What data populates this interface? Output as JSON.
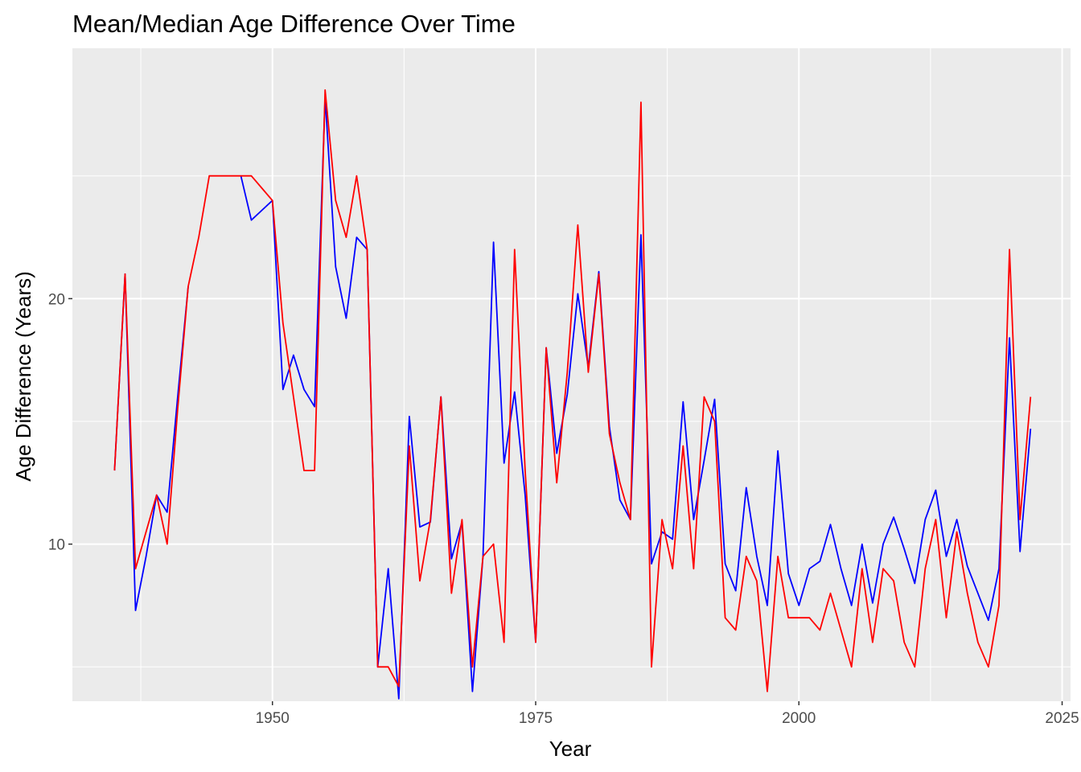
{
  "chart_data": {
    "type": "line",
    "title": "Mean/Median Age Difference Over Time",
    "xlabel": "Year",
    "ylabel": "Age Difference (Years)",
    "xlim": [
      1931,
      2025.8
    ],
    "ylim": [
      3.6,
      30.2
    ],
    "xticks": [
      1950,
      1975,
      2000,
      2025
    ],
    "yticks": [
      10,
      20
    ],
    "grid": true,
    "legend": "none",
    "colors": {
      "panel": "#EBEBEB",
      "grid": "#FFFFFF",
      "mean": "#0000FF",
      "median": "#FF0000"
    },
    "series": [
      {
        "color": "#0000FF",
        "segments": [
          {
            "x": [
              1935,
              1936,
              1937,
              1938,
              1939,
              1940,
              1941,
              1942
            ],
            "y": [
              13,
              21,
              7.3,
              9.5,
              12,
              11.3,
              16,
              20.5
            ]
          },
          {
            "x": [
              1947,
              1948,
              1949,
              1950,
              1951,
              1952,
              1953,
              1954,
              1955,
              1956,
              1957,
              1958,
              1959,
              1960,
              1961,
              1962,
              1963,
              1964,
              1965,
              1966,
              1967,
              1968,
              1969,
              1970,
              1971,
              1972,
              1973,
              1974,
              1975,
              1976,
              1977,
              1978,
              1979,
              1980,
              1981,
              1982,
              1983,
              1984,
              1985,
              1986,
              1987,
              1988,
              1989,
              1990,
              1991,
              1992,
              1993,
              1994,
              1995,
              1996,
              1997,
              1998,
              1999,
              2000,
              2001,
              2002,
              2003,
              2004,
              2005,
              2006,
              2007,
              2008,
              2009,
              2010,
              2011,
              2012,
              2013,
              2014,
              2015,
              2016,
              2017,
              2018,
              2019,
              2020,
              2021,
              2022
            ],
            "y": [
              25,
              23.2,
              23.6,
              24,
              16.3,
              17.7,
              16.3,
              15.6,
              28.2,
              21.3,
              19.2,
              22.5,
              22,
              5,
              9,
              3.7,
              15.2,
              10.7,
              10.9,
              16,
              9.4,
              10.9,
              4,
              9.5,
              22.3,
              13.3,
              16.2,
              12,
              6,
              18,
              13.7,
              16.1,
              20.2,
              17.2,
              21.1,
              14.8,
              11.8,
              11,
              22.6,
              9.2,
              10.5,
              10.2,
              15.8,
              11,
              13.4,
              15.9,
              9.2,
              8.1,
              12.3,
              9.5,
              7.5,
              13.8,
              8.8,
              7.5,
              9,
              9.3,
              10.8,
              9,
              7.5,
              10,
              7.6,
              10,
              11.1,
              9.8,
              8.4,
              11,
              12.2,
              9.5,
              11,
              9.1,
              8,
              6.9,
              9,
              18.4,
              9.7,
              14.7
            ]
          }
        ]
      },
      {
        "color": "#FF0000",
        "segments": [
          {
            "x": [
              1935,
              1936,
              1937,
              1938,
              1939,
              1940,
              1941,
              1942,
              1943,
              1944,
              1945,
              1946,
              1947,
              1948,
              1949,
              1950,
              1951,
              1952,
              1953,
              1954,
              1955,
              1956,
              1957,
              1958,
              1959,
              1960,
              1961,
              1962,
              1963,
              1964,
              1965,
              1966,
              1967,
              1968,
              1969,
              1970,
              1971,
              1972,
              1973,
              1974,
              1975,
              1976,
              1977,
              1978,
              1979,
              1980,
              1981,
              1982,
              1983,
              1984,
              1985,
              1986,
              1987,
              1988,
              1989,
              1990,
              1991,
              1992,
              1993,
              1994,
              1995,
              1996,
              1997,
              1998,
              1999,
              2000,
              2001,
              2002,
              2003,
              2004,
              2005,
              2006,
              2007,
              2008,
              2009,
              2010,
              2011,
              2012,
              2013,
              2014,
              2015,
              2016,
              2017,
              2018,
              2019,
              2020,
              2021,
              2022
            ],
            "y": [
              13,
              21,
              9,
              10.5,
              12,
              10,
              15.5,
              20.5,
              22.5,
              25,
              25,
              25,
              25,
              25,
              24.5,
              24,
              19,
              16,
              13,
              13,
              28.5,
              24,
              22.5,
              25,
              22,
              5,
              5,
              4.2,
              14,
              8.5,
              11,
              16,
              8,
              11,
              5,
              9.5,
              10,
              6,
              22,
              13,
              6,
              18,
              12.5,
              17,
              23,
              17,
              21,
              14.5,
              12.5,
              11,
              28,
              5,
              11,
              9,
              14,
              9,
              16,
              15,
              7,
              6.5,
              9.5,
              8.5,
              4,
              9.5,
              7,
              7,
              7,
              6.5,
              8,
              6.5,
              5,
              9,
              6,
              9,
              8.5,
              6,
              5,
              9,
              11,
              7,
              10.5,
              8,
              6,
              5,
              7.5,
              22,
              11,
              16
            ]
          }
        ]
      }
    ]
  }
}
